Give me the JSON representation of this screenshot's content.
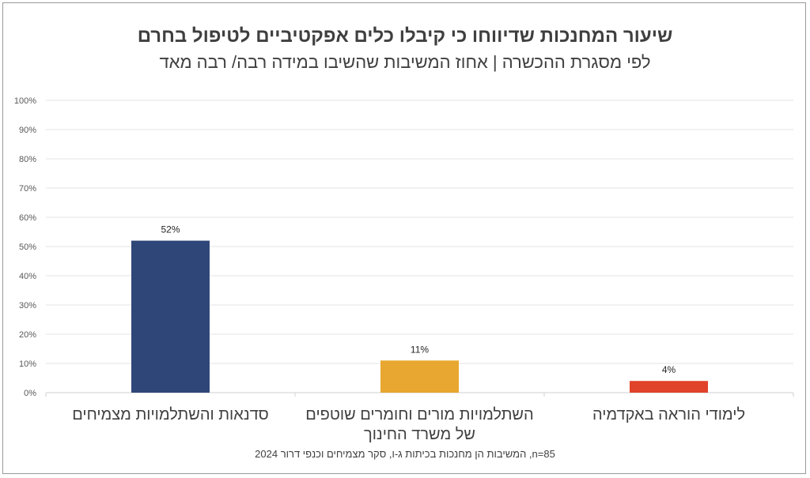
{
  "chart_data": {
    "type": "bar",
    "title": "שיעור המחנכות שדיווחו כי קיבלו כלים אפקטיביים לטיפול בחרם",
    "subtitle": "לפי מסגרת ההכשרה | אחוז המשיבות שהשיבו במידה רבה/ רבה מאד",
    "categories": [
      [
        "סדנאות והשתלמויות מצמיחים"
      ],
      [
        "השתלמויות מורים וחומרים שוטפים",
        "של משרד החינוך"
      ],
      [
        "לימודי הוראה באקדמיה"
      ]
    ],
    "values": [
      52,
      11,
      4
    ],
    "value_labels": [
      "52%",
      "11%",
      "4%"
    ],
    "colors": [
      "#2f4778",
      "#e8a730",
      "#e0422a"
    ],
    "ylim": [
      0,
      100
    ],
    "yticks": [
      0,
      10,
      20,
      30,
      40,
      50,
      60,
      70,
      80,
      90,
      100
    ],
    "ytick_labels": [
      "0%",
      "10%",
      "20%",
      "30%",
      "40%",
      "50%",
      "60%",
      "70%",
      "80%",
      "90%",
      "100%"
    ],
    "grid": true,
    "xlabel": "",
    "ylabel": "",
    "note": "n=85, המשיבות הן מחנכות בכיתות ג-ו, סקר מצמיחים וכנפי דרור 2024"
  }
}
